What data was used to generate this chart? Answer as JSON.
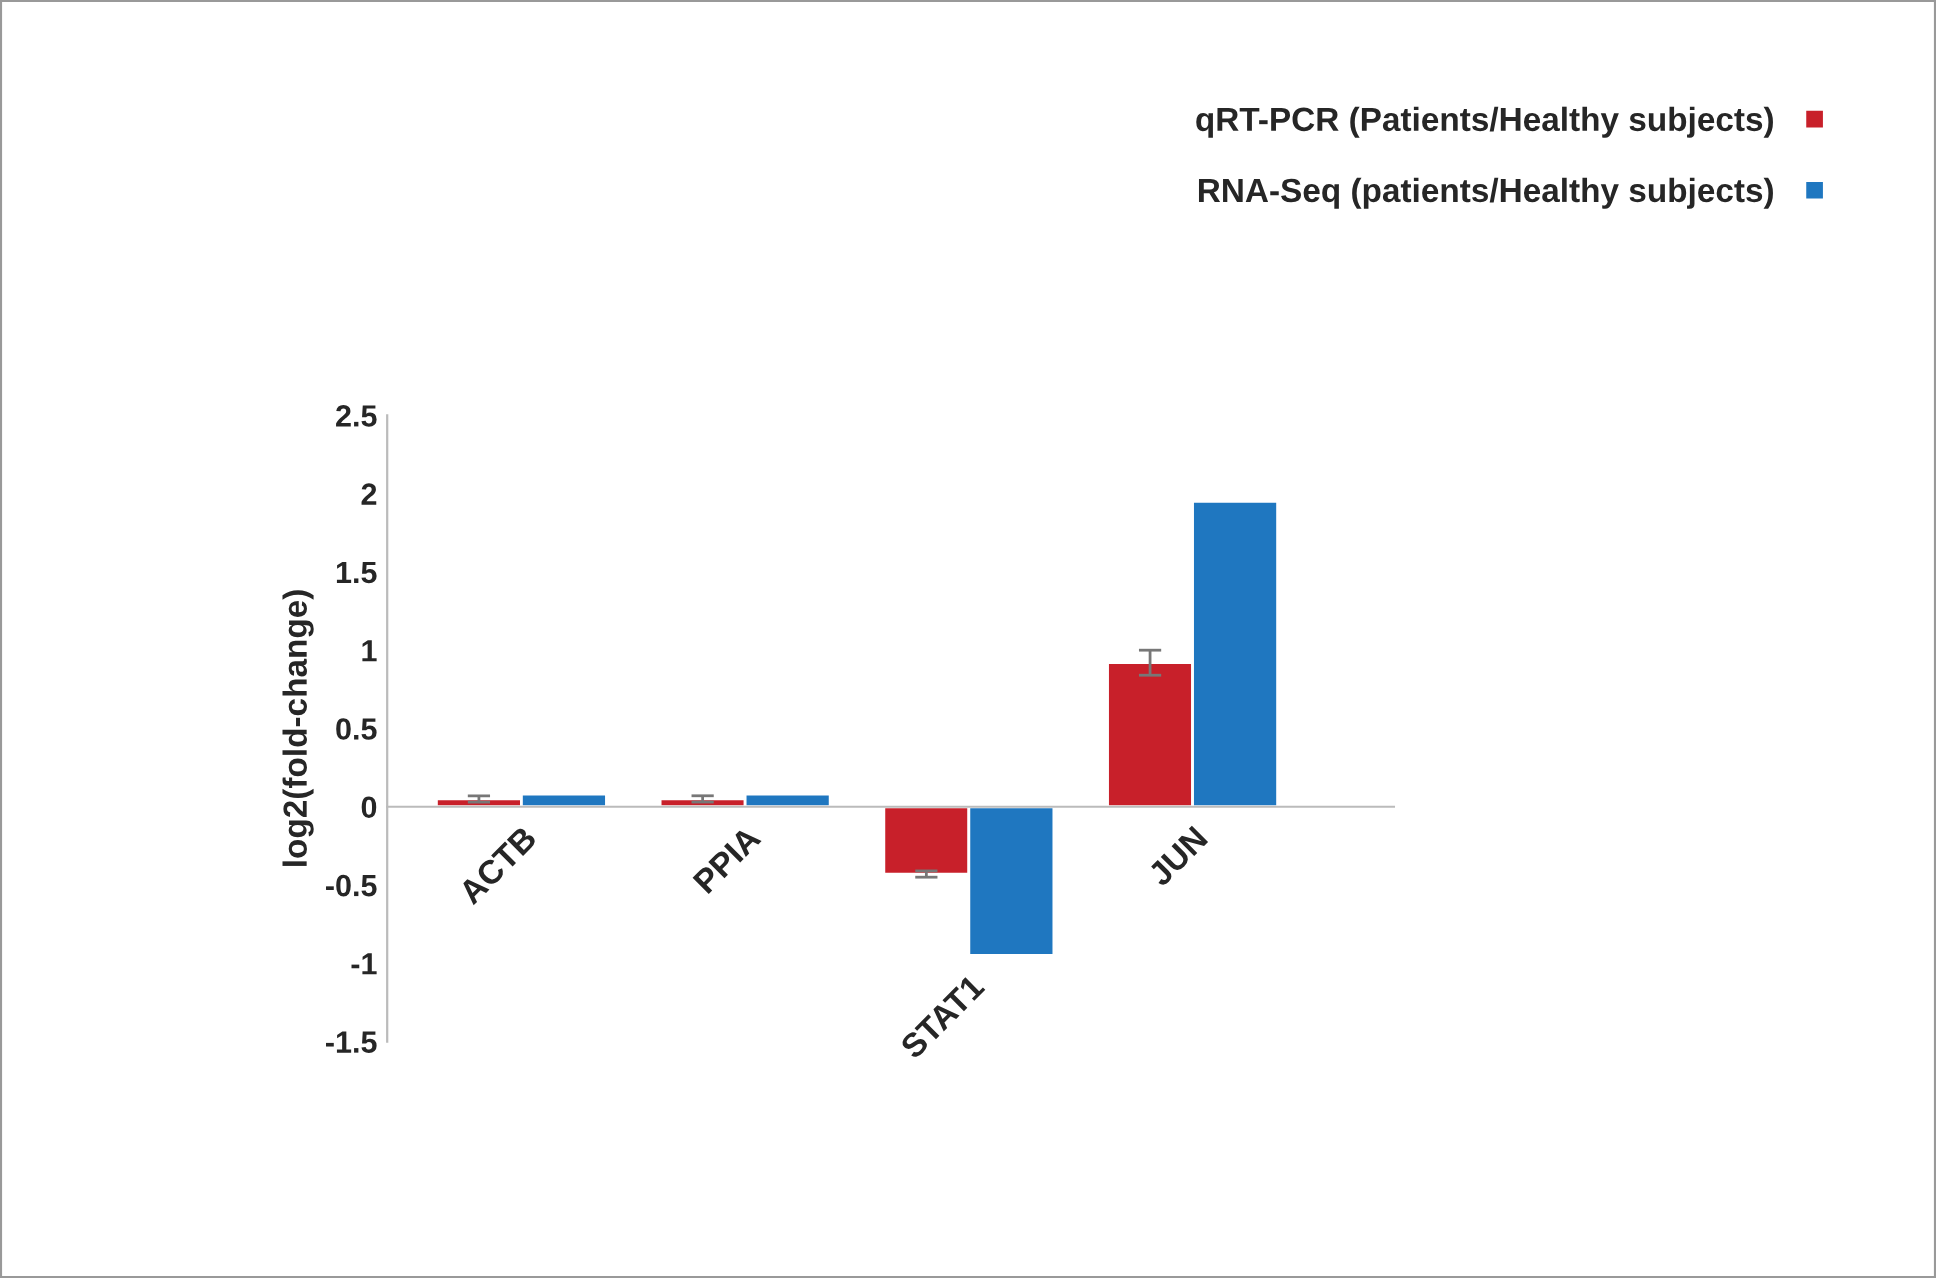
{
  "chart_data": {
    "type": "bar",
    "ylabel": "log2(fold-change)",
    "categories": [
      "ACTB",
      "PPIA",
      "STAT1",
      "JUN"
    ],
    "series": [
      {
        "name": "qRT-PCR (Patients/Healthy subjects)",
        "color": "#c8202a",
        "values": [
          0.05,
          0.05,
          -0.43,
          0.92
        ],
        "errors": [
          0.02,
          0.02,
          0.02,
          0.08
        ]
      },
      {
        "name": "RNA-Seq (patients/Healthy subjects)",
        "color": "#1f77c0",
        "values": [
          0.08,
          0.08,
          -0.95,
          1.95
        ]
      }
    ],
    "ylim": [
      -1.5,
      2.5
    ],
    "yticks": [
      -1.5,
      -1,
      -0.5,
      0,
      0.5,
      1,
      1.5,
      2,
      2.5
    ],
    "grid": false,
    "legend": "top right"
  }
}
